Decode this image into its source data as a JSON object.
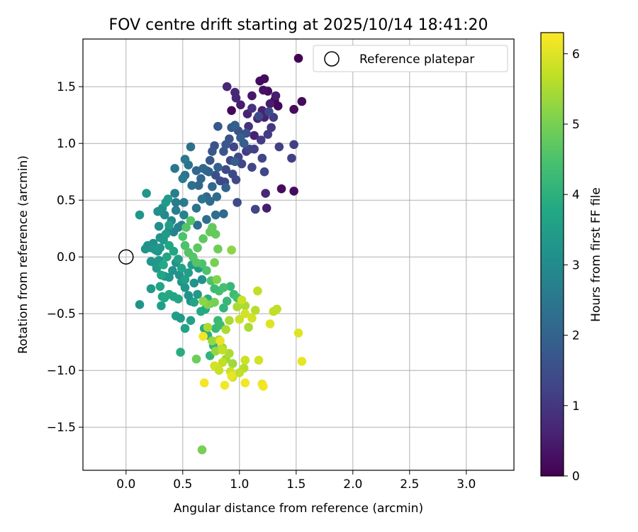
{
  "chart_data": {
    "type": "scatter",
    "title": "FOV centre drift starting at 2025/10/14 18:41:20",
    "xlabel": "Angular distance from reference (arcmin)",
    "ylabel": "Rotation from reference (arcmin)",
    "xlim": [
      -0.38,
      3.42
    ],
    "ylim": [
      -1.88,
      1.92
    ],
    "xticks": [
      0.0,
      0.5,
      1.0,
      1.5,
      2.0,
      2.5,
      3.0
    ],
    "yticks": [
      -1.5,
      -1.0,
      -0.5,
      0.0,
      0.5,
      1.0,
      1.5
    ],
    "xtick_labels": [
      "0.0",
      "0.5",
      "1.0",
      "1.5",
      "2.0",
      "2.5",
      "3.0"
    ],
    "ytick_labels": [
      "−1.5",
      "−1.0",
      "−0.5",
      "0.0",
      "0.5",
      "1.0",
      "1.5"
    ],
    "grid": true,
    "legend": {
      "position": "top-right",
      "entries": [
        {
          "label": "Reference platepar",
          "marker": "open-circle"
        }
      ]
    },
    "reference_point": {
      "x": 0.0,
      "y": 0.0
    },
    "colorbar": {
      "label": "Hours from first FF file",
      "colormap": "viridis",
      "range": [
        0,
        6.3
      ],
      "ticks": [
        0,
        1,
        2,
        3,
        4,
        5,
        6
      ],
      "tick_labels": [
        "0",
        "1",
        "2",
        "3",
        "4",
        "5",
        "6"
      ]
    },
    "points": [
      [
        1.52,
        1.75,
        0.0
      ],
      [
        1.34,
        1.33,
        0.1
      ],
      [
        1.31,
        1.38,
        0.1
      ],
      [
        1.22,
        1.57,
        0.2
      ],
      [
        1.18,
        1.55,
        0.2
      ],
      [
        1.25,
        1.46,
        0.2
      ],
      [
        1.48,
        1.3,
        0.2
      ],
      [
        1.55,
        1.37,
        0.2
      ],
      [
        0.93,
        1.29,
        0.1
      ],
      [
        1.21,
        1.47,
        0.3
      ],
      [
        1.11,
        1.42,
        0.4
      ],
      [
        1.32,
        1.42,
        0.5
      ],
      [
        1.27,
        1.35,
        0.5
      ],
      [
        1.01,
        1.34,
        0.5
      ],
      [
        1.07,
        1.26,
        0.6
      ],
      [
        1.2,
        1.29,
        0.6
      ],
      [
        1.16,
        1.22,
        0.6
      ],
      [
        1.22,
        1.23,
        0.6
      ],
      [
        0.97,
        1.4,
        0.7
      ],
      [
        0.89,
        1.5,
        0.7
      ],
      [
        0.96,
        1.45,
        0.7
      ],
      [
        1.13,
        1.07,
        0.6
      ],
      [
        1.37,
        0.6,
        0.2
      ],
      [
        1.48,
        0.58,
        0.2
      ],
      [
        1.24,
        0.43,
        0.5
      ],
      [
        1.23,
        0.56,
        0.7
      ],
      [
        1.11,
        1.31,
        0.9
      ],
      [
        1.08,
        1.15,
        0.9
      ],
      [
        1.28,
        1.14,
        1.0
      ],
      [
        1.3,
        1.23,
        1.1
      ],
      [
        1.25,
        1.08,
        1.1
      ],
      [
        1.19,
        1.03,
        1.1
      ],
      [
        1.35,
        0.97,
        1.2
      ],
      [
        1.48,
        0.99,
        1.2
      ],
      [
        1.46,
        0.87,
        1.2
      ],
      [
        1.2,
        0.87,
        1.3
      ],
      [
        1.11,
        0.79,
        1.3
      ],
      [
        1.22,
        0.75,
        1.3
      ],
      [
        0.98,
        0.48,
        1.4
      ],
      [
        1.14,
        0.42,
        1.3
      ],
      [
        1.06,
        0.93,
        1.1
      ],
      [
        0.99,
        0.88,
        1.3
      ],
      [
        0.95,
        0.97,
        1.3
      ],
      [
        0.92,
        0.85,
        1.3
      ],
      [
        0.97,
        0.68,
        1.4
      ],
      [
        0.94,
        0.73,
        1.4
      ],
      [
        0.88,
        0.77,
        1.4
      ],
      [
        0.79,
        0.72,
        1.5
      ],
      [
        0.83,
        0.67,
        1.5
      ],
      [
        0.87,
        0.66,
        1.4
      ],
      [
        1.02,
        0.82,
        1.3
      ],
      [
        1.09,
        0.95,
        1.3
      ],
      [
        1.13,
        0.95,
        1.2
      ],
      [
        1.26,
        1.28,
        1.4
      ],
      [
        1.17,
        1.24,
        1.4
      ],
      [
        1.06,
        1.09,
        1.6
      ],
      [
        0.99,
        1.11,
        1.6
      ],
      [
        0.91,
        1.04,
        1.6
      ],
      [
        0.88,
        0.99,
        1.7
      ],
      [
        0.86,
        0.93,
        1.7
      ],
      [
        0.78,
        0.98,
        1.6
      ],
      [
        0.76,
        0.93,
        1.7
      ],
      [
        0.74,
        0.85,
        1.7
      ],
      [
        0.81,
        1.15,
        1.7
      ],
      [
        0.93,
        1.14,
        1.8
      ],
      [
        0.96,
        1.16,
        1.9
      ],
      [
        1.04,
        1.0,
        1.9
      ],
      [
        1.01,
        1.05,
        1.9
      ],
      [
        0.96,
        0.84,
        1.9
      ],
      [
        0.88,
        0.61,
        2.0
      ],
      [
        0.81,
        0.79,
        1.9
      ],
      [
        0.73,
        0.75,
        2.0
      ],
      [
        0.71,
        0.76,
        2.0
      ],
      [
        0.68,
        0.78,
        2.1
      ],
      [
        0.66,
        0.69,
        2.1
      ],
      [
        0.62,
        0.76,
        2.1
      ],
      [
        0.64,
        0.63,
        2.1
      ],
      [
        0.76,
        0.62,
        2.1
      ],
      [
        0.71,
        0.53,
        2.1
      ],
      [
        0.74,
        0.49,
        2.2
      ],
      [
        0.8,
        0.53,
        2.2
      ],
      [
        0.86,
        0.38,
        2.2
      ],
      [
        0.79,
        0.37,
        2.3
      ],
      [
        0.71,
        0.33,
        2.3
      ],
      [
        0.63,
        0.28,
        2.3
      ],
      [
        0.67,
        0.51,
        2.4
      ],
      [
        0.62,
        0.43,
        2.4
      ],
      [
        0.58,
        0.63,
        2.3
      ],
      [
        0.57,
        0.97,
        2.3
      ],
      [
        0.55,
        0.81,
        2.4
      ],
      [
        0.52,
        0.72,
        2.4
      ],
      [
        0.52,
        0.86,
        2.5
      ],
      [
        0.43,
        0.78,
        2.5
      ],
      [
        0.5,
        0.69,
        2.6
      ],
      [
        0.43,
        0.56,
        2.7
      ],
      [
        0.44,
        0.48,
        2.6
      ],
      [
        0.51,
        0.48,
        2.6
      ],
      [
        0.44,
        0.41,
        2.7
      ],
      [
        0.51,
        0.37,
        2.8
      ],
      [
        0.49,
        0.28,
        2.8
      ],
      [
        0.46,
        0.26,
        2.8
      ],
      [
        0.42,
        0.22,
        2.8
      ],
      [
        0.4,
        0.32,
        2.9
      ],
      [
        0.38,
        0.24,
        2.9
      ],
      [
        0.34,
        0.37,
        3.0
      ],
      [
        0.32,
        0.43,
        3.1
      ],
      [
        0.28,
        0.4,
        3.1
      ],
      [
        0.29,
        0.27,
        3.1
      ],
      [
        0.3,
        0.17,
        3.2
      ],
      [
        0.24,
        0.12,
        3.1
      ],
      [
        0.28,
        0.05,
        3.2
      ],
      [
        0.25,
        0.09,
        3.1
      ],
      [
        0.22,
        0.08,
        3.2
      ],
      [
        0.19,
        0.1,
        3.2
      ],
      [
        0.17,
        0.07,
        3.2
      ],
      [
        0.12,
        0.37,
        3.3
      ],
      [
        0.18,
        0.56,
        3.3
      ],
      [
        0.35,
        0.48,
        3.4
      ],
      [
        0.37,
        0.51,
        3.4
      ],
      [
        0.38,
        0.28,
        3.5
      ],
      [
        0.35,
        0.2,
        3.4
      ],
      [
        0.33,
        0.15,
        3.4
      ],
      [
        0.3,
        0.08,
        3.3
      ],
      [
        0.26,
        0.06,
        3.3
      ],
      [
        0.29,
        -0.03,
        3.3
      ],
      [
        0.25,
        -0.05,
        3.4
      ],
      [
        0.22,
        -0.04,
        3.3
      ],
      [
        0.27,
        -0.1,
        3.4
      ],
      [
        0.34,
        -0.17,
        3.3
      ],
      [
        0.38,
        -0.18,
        3.3
      ],
      [
        0.41,
        -0.12,
        3.2
      ],
      [
        0.44,
        -0.05,
        3.2
      ],
      [
        0.47,
        -0.16,
        3.2
      ],
      [
        0.49,
        -0.22,
        3.3
      ],
      [
        0.52,
        -0.27,
        3.3
      ],
      [
        0.55,
        -0.34,
        3.2
      ],
      [
        0.57,
        -0.39,
        3.2
      ],
      [
        0.6,
        -0.23,
        3.2
      ],
      [
        0.63,
        -0.33,
        3.4
      ],
      [
        0.67,
        -0.2,
        3.2
      ],
      [
        0.64,
        -0.1,
        3.4
      ],
      [
        0.58,
        -0.07,
        3.5
      ],
      [
        0.55,
        -0.14,
        3.5
      ],
      [
        0.52,
        -0.2,
        3.6
      ],
      [
        0.49,
        -0.1,
        3.6
      ],
      [
        0.46,
        -0.02,
        3.6
      ],
      [
        0.42,
        0.05,
        3.7
      ],
      [
        0.38,
        0.1,
        3.7
      ],
      [
        0.36,
        0.0,
        3.7
      ],
      [
        0.33,
        -0.07,
        3.8
      ],
      [
        0.31,
        -0.16,
        3.7
      ],
      [
        0.3,
        -0.26,
        3.7
      ],
      [
        0.32,
        -0.35,
        3.7
      ],
      [
        0.34,
        -0.36,
        3.8
      ],
      [
        0.38,
        -0.33,
        3.8
      ],
      [
        0.42,
        -0.35,
        3.7
      ],
      [
        0.46,
        -0.37,
        3.7
      ],
      [
        0.31,
        -0.43,
        3.5
      ],
      [
        0.12,
        -0.42,
        3.2
      ],
      [
        0.22,
        -0.28,
        3.4
      ],
      [
        0.44,
        -0.52,
        3.5
      ],
      [
        0.48,
        -0.54,
        3.4
      ],
      [
        0.52,
        -0.63,
        3.6
      ],
      [
        0.48,
        -0.84,
        3.9
      ],
      [
        0.57,
        -0.56,
        3.6
      ],
      [
        0.6,
        -0.4,
        3.7
      ],
      [
        0.66,
        -0.48,
        3.8
      ],
      [
        0.7,
        -0.46,
        3.8
      ],
      [
        0.72,
        -0.37,
        3.9
      ],
      [
        0.74,
        -0.41,
        4.0
      ],
      [
        0.69,
        -0.63,
        3.9
      ],
      [
        0.72,
        -0.69,
        4.0
      ],
      [
        0.74,
        -0.87,
        4.1
      ],
      [
        0.77,
        -0.78,
        4.1
      ],
      [
        0.79,
        -0.63,
        4.2
      ],
      [
        0.81,
        -0.56,
        4.2
      ],
      [
        0.83,
        -0.6,
        4.3
      ],
      [
        0.86,
        -0.45,
        4.1
      ],
      [
        0.89,
        -0.39,
        4.2
      ],
      [
        0.92,
        -0.26,
        4.2
      ],
      [
        0.95,
        -0.33,
        4.3
      ],
      [
        0.98,
        -0.36,
        4.4
      ],
      [
        0.86,
        -0.27,
        4.4
      ],
      [
        0.82,
        -0.3,
        4.4
      ],
      [
        0.78,
        -0.28,
        4.3
      ],
      [
        0.75,
        -0.21,
        4.5
      ],
      [
        0.71,
        -0.12,
        4.5
      ],
      [
        0.67,
        -0.06,
        4.5
      ],
      [
        0.62,
        -0.05,
        4.6
      ],
      [
        0.59,
        0.0,
        4.6
      ],
      [
        0.55,
        0.04,
        4.6
      ],
      [
        0.52,
        0.1,
        4.5
      ],
      [
        0.5,
        0.18,
        4.5
      ],
      [
        0.53,
        0.26,
        4.6
      ],
      [
        0.57,
        0.32,
        4.6
      ],
      [
        0.63,
        0.08,
        4.7
      ],
      [
        0.68,
        0.16,
        4.7
      ],
      [
        0.74,
        0.22,
        4.8
      ],
      [
        0.79,
        0.2,
        4.8
      ],
      [
        0.76,
        0.26,
        4.8
      ],
      [
        0.81,
        0.07,
        4.9
      ],
      [
        0.78,
        -0.05,
        5.0
      ],
      [
        0.8,
        -0.2,
        5.1
      ],
      [
        0.62,
        -0.9,
        4.9
      ],
      [
        0.67,
        -1.7,
        5.0
      ],
      [
        0.93,
        0.06,
        5.2
      ],
      [
        0.78,
        -0.4,
        5.0
      ],
      [
        0.72,
        -0.42,
        5.1
      ],
      [
        0.68,
        -0.39,
        5.2
      ],
      [
        0.76,
        -0.74,
        5.3
      ],
      [
        0.79,
        -0.83,
        5.3
      ],
      [
        0.82,
        -0.73,
        5.4
      ],
      [
        0.85,
        -0.8,
        5.3
      ],
      [
        0.88,
        -0.9,
        5.4
      ],
      [
        0.91,
        -0.85,
        5.5
      ],
      [
        0.94,
        -0.94,
        5.4
      ],
      [
        0.88,
        -0.64,
        5.5
      ],
      [
        0.91,
        -0.56,
        5.5
      ],
      [
        0.98,
        -0.44,
        5.5
      ],
      [
        1.05,
        -0.43,
        5.5
      ],
      [
        1.08,
        -0.62,
        5.5
      ],
      [
        1.14,
        -0.47,
        5.6
      ],
      [
        1.16,
        -0.3,
        5.7
      ],
      [
        1.3,
        -0.48,
        5.7
      ],
      [
        1.33,
        -0.46,
        5.7
      ],
      [
        1.02,
        -0.38,
        5.8
      ],
      [
        1.05,
        -0.5,
        5.9
      ],
      [
        1.11,
        -0.54,
        5.9
      ],
      [
        1.0,
        -0.55,
        5.8
      ],
      [
        1.04,
        -0.98,
        5.6
      ],
      [
        1.0,
        -1.02,
        5.7
      ],
      [
        0.94,
        -1.06,
        5.8
      ],
      [
        0.92,
        -1.01,
        5.8
      ],
      [
        0.85,
        -0.93,
        5.7
      ],
      [
        0.81,
        -0.98,
        5.8
      ],
      [
        0.78,
        -0.96,
        5.9
      ],
      [
        0.82,
        -1.0,
        5.8
      ],
      [
        1.05,
        -0.91,
        5.8
      ],
      [
        0.85,
        -0.82,
        5.7
      ],
      [
        0.72,
        -0.62,
        5.5
      ],
      [
        1.17,
        -0.91,
        5.9
      ],
      [
        1.27,
        -0.59,
        6.0
      ],
      [
        1.52,
        -0.67,
        6.0
      ],
      [
        1.55,
        -0.92,
        6.1
      ],
      [
        1.2,
        -1.12,
        6.1
      ],
      [
        1.21,
        -1.14,
        6.2
      ],
      [
        1.05,
        -1.11,
        6.2
      ],
      [
        0.93,
        -1.05,
        6.1
      ],
      [
        0.87,
        -1.13,
        6.2
      ],
      [
        0.69,
        -1.11,
        6.2
      ],
      [
        0.68,
        -0.7,
        6.2
      ],
      [
        0.83,
        -0.74,
        6.1
      ]
    ]
  }
}
